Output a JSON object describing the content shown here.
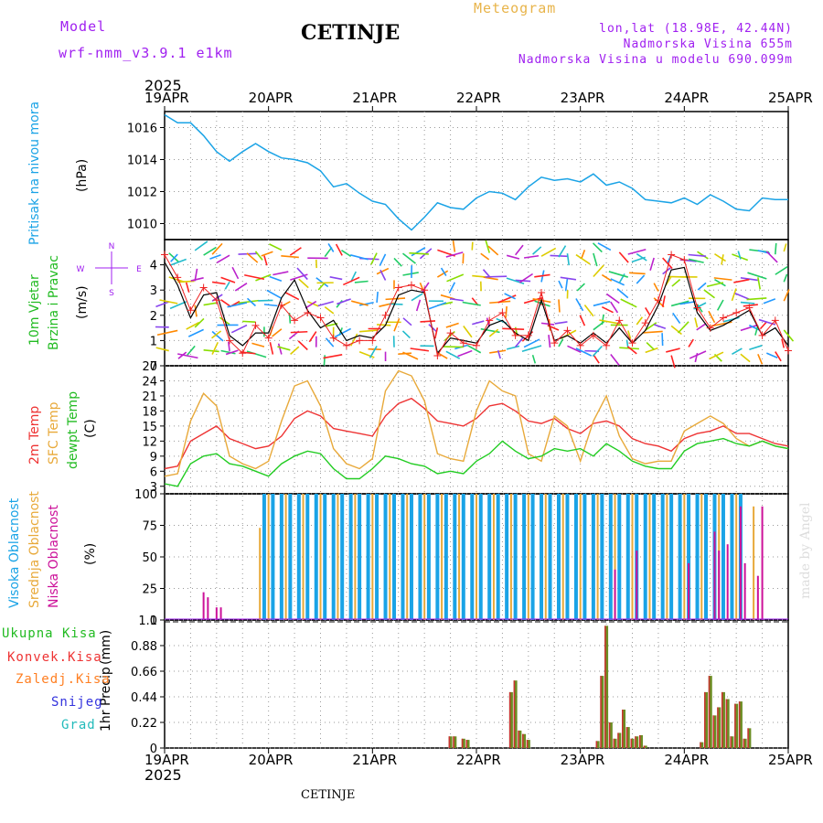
{
  "header": {
    "model_label": "Model",
    "model_name": "wrf-nmm_v3.9.1 e1km",
    "station": "CETINJE",
    "product": "Meteogram",
    "coords": "lon,lat (18.98E, 42.44N)",
    "elevation": "Nadmorska Visina 655m",
    "model_elevation": "Nadmorska Visina u modelu 690.099m",
    "year": "2025",
    "footer_station": "CETINJE",
    "watermark": "made by Angel"
  },
  "axis": {
    "day_labels": [
      "19APR",
      "20APR",
      "21APR",
      "22APR",
      "23APR",
      "24APR",
      "25APR"
    ]
  },
  "colors": {
    "pressure": "#1aa3e6",
    "wind_speed": "#000000",
    "wind_gust": "#ee2222",
    "temp_2m": "#ee3333",
    "temp_sfc": "#e8a93a",
    "dewpoint": "#22cc22",
    "cloud_high": "#1aa3e6",
    "cloud_mid": "#e8a93a",
    "cloud_low": "#cc1199",
    "precip": "#6b8e23"
  },
  "panels": {
    "pressure": {
      "labels": [
        "Pritisak na nivou mora",
        "(hPa)"
      ]
    },
    "wind": {
      "labels": [
        "10m Vjetar",
        "Brzina i Pravac",
        "(m/s)"
      ],
      "compass": [
        "N",
        "S",
        "W",
        "E"
      ]
    },
    "temp": {
      "labels": [
        "2m Temp",
        "SFC Temp",
        "dewpt Temp",
        "(C)"
      ]
    },
    "cloud": {
      "labels": [
        "Visoka Oblacnost",
        "Srednja Oblacnost",
        "Niska Oblacnost",
        "(%)"
      ]
    },
    "precip": {
      "labels": [
        "1hr Precip",
        "(mm)"
      ],
      "legend": [
        "Ukupna Kisa",
        "Konvek.Kisa",
        "Zaledj.Kisa",
        "Snijeg",
        "Grad"
      ],
      "legend_colors": [
        "#22bb22",
        "#ee3333",
        "#ff7f22",
        "#3333dd",
        "#22bbbb"
      ]
    }
  },
  "chart_data": [
    {
      "type": "line",
      "name": "pressure",
      "unit": "hPa",
      "x_range": [
        0,
        144
      ],
      "ylim": [
        1009,
        1017
      ],
      "y_ticks": [
        1010,
        1012,
        1014,
        1016
      ],
      "x": [
        0,
        3,
        6,
        9,
        12,
        15,
        18,
        21,
        24,
        27,
        30,
        33,
        36,
        39,
        42,
        45,
        48,
        51,
        54,
        57,
        60,
        63,
        66,
        69,
        72,
        75,
        78,
        81,
        84,
        87,
        90,
        93,
        96,
        99,
        102,
        105,
        108,
        111,
        114,
        117,
        120,
        123,
        126,
        129,
        132,
        135,
        138,
        141,
        144
      ],
      "y": [
        1016.8,
        1016.3,
        1016.3,
        1015.5,
        1014.5,
        1013.9,
        1014.5,
        1015.0,
        1014.5,
        1014.1,
        1014.0,
        1013.8,
        1013.3,
        1012.3,
        1012.5,
        1011.9,
        1011.4,
        1011.2,
        1010.3,
        1009.6,
        1010.4,
        1011.3,
        1011.0,
        1010.9,
        1011.6,
        1012.0,
        1011.9,
        1011.5,
        1012.3,
        1012.9,
        1012.7,
        1012.8,
        1012.6,
        1013.1,
        1012.4,
        1012.6,
        1012.2,
        1011.5,
        1011.4,
        1011.3,
        1011.6,
        1011.2,
        1011.8,
        1011.4,
        1010.9,
        1010.8,
        1011.6,
        1011.5,
        1011.5
      ]
    },
    {
      "type": "line",
      "name": "wind",
      "unit": "m/s",
      "x_range": [
        0,
        144
      ],
      "ylim": [
        0,
        5
      ],
      "y_ticks": [
        0,
        1,
        2,
        3,
        4
      ],
      "series": [
        {
          "name": "speed",
          "x": [
            0,
            3,
            6,
            9,
            12,
            15,
            18,
            21,
            24,
            27,
            30,
            33,
            36,
            39,
            42,
            45,
            48,
            51,
            54,
            57,
            60,
            63,
            66,
            69,
            72,
            75,
            78,
            81,
            84,
            87,
            90,
            93,
            96,
            99,
            102,
            105,
            108,
            111,
            114,
            117,
            120,
            123,
            126,
            129,
            132,
            135,
            138,
            141,
            144
          ],
          "y": [
            4.1,
            3.2,
            1.9,
            2.8,
            2.9,
            1.2,
            0.8,
            1.3,
            1.3,
            2.7,
            3.4,
            2.2,
            1.5,
            1.8,
            1.0,
            1.2,
            1.1,
            1.6,
            2.8,
            3.0,
            2.9,
            0.5,
            1.1,
            1.0,
            0.9,
            1.6,
            1.8,
            1.3,
            1.0,
            2.6,
            1.0,
            1.2,
            0.9,
            1.3,
            0.9,
            1.5,
            0.9,
            1.4,
            2.4,
            3.8,
            3.9,
            2.1,
            1.4,
            1.6,
            1.9,
            2.2,
            1.2,
            1.5,
            0.8
          ]
        },
        {
          "name": "gust",
          "x": [
            0,
            3,
            6,
            9,
            12,
            15,
            18,
            21,
            24,
            27,
            30,
            33,
            36,
            39,
            42,
            45,
            48,
            51,
            54,
            57,
            60,
            63,
            66,
            69,
            72,
            75,
            78,
            81,
            84,
            87,
            90,
            93,
            96,
            99,
            102,
            105,
            108,
            111,
            114,
            117,
            120,
            123,
            126,
            129,
            132,
            135,
            138,
            141,
            144
          ],
          "y": [
            4.4,
            3.5,
            2.2,
            3.1,
            2.6,
            1.0,
            0.5,
            1.6,
            1.1,
            2.4,
            1.8,
            2.1,
            1.9,
            1.1,
            0.8,
            1.0,
            1.0,
            2.0,
            3.1,
            3.2,
            3.0,
            0.4,
            1.3,
            0.9,
            0.8,
            1.8,
            2.1,
            1.2,
            1.2,
            2.9,
            0.9,
            1.4,
            0.8,
            1.2,
            0.8,
            1.8,
            0.9,
            1.7,
            2.6,
            4.4,
            4.2,
            2.3,
            1.5,
            1.9,
            2.1,
            2.3,
            1.2,
            1.8,
            0.6
          ]
        }
      ]
    },
    {
      "type": "line",
      "name": "temperature",
      "unit": "C",
      "x_range": [
        0,
        144
      ],
      "ylim": [
        1.5,
        27
      ],
      "y_ticks": [
        3,
        6,
        9,
        12,
        15,
        18,
        21,
        24,
        27
      ],
      "series": [
        {
          "name": "2m",
          "x": [
            0,
            3,
            6,
            9,
            12,
            15,
            18,
            21,
            24,
            27,
            30,
            33,
            36,
            39,
            42,
            45,
            48,
            51,
            54,
            57,
            60,
            63,
            66,
            69,
            72,
            75,
            78,
            81,
            84,
            87,
            90,
            93,
            96,
            99,
            102,
            105,
            108,
            111,
            114,
            117,
            120,
            123,
            126,
            129,
            132,
            135,
            138,
            141,
            144
          ],
          "y": [
            6.5,
            7.0,
            12.0,
            13.5,
            15.0,
            12.5,
            11.5,
            10.5,
            11.0,
            13.0,
            16.5,
            18.0,
            17.0,
            14.5,
            14.0,
            13.5,
            13.0,
            17.0,
            19.5,
            20.5,
            18.5,
            16.0,
            15.5,
            15.0,
            16.5,
            19.0,
            19.5,
            18.0,
            16.0,
            15.5,
            16.5,
            14.5,
            13.5,
            15.5,
            16.0,
            15.0,
            12.5,
            11.5,
            11.0,
            10.0,
            12.5,
            13.5,
            14.0,
            15.0,
            13.5,
            13.5,
            12.5,
            11.5,
            11.0
          ]
        },
        {
          "name": "SFC",
          "x": [
            0,
            3,
            6,
            9,
            12,
            15,
            18,
            21,
            24,
            27,
            30,
            33,
            36,
            39,
            42,
            45,
            48,
            51,
            54,
            57,
            60,
            63,
            66,
            69,
            72,
            75,
            78,
            81,
            84,
            87,
            90,
            93,
            96,
            99,
            102,
            105,
            108,
            111,
            114,
            117,
            120,
            123,
            126,
            129,
            132,
            135,
            138,
            141,
            144
          ],
          "y": [
            5.0,
            5.5,
            16.0,
            21.5,
            19.0,
            9.0,
            7.5,
            6.5,
            8.0,
            16.0,
            23.0,
            24.0,
            19.0,
            10.5,
            7.5,
            6.5,
            8.5,
            22.0,
            26.0,
            25.0,
            20.0,
            9.5,
            8.5,
            8.0,
            18.0,
            24.0,
            22.0,
            21.0,
            9.5,
            8.0,
            17.0,
            15.0,
            8.0,
            16.0,
            21.0,
            13.0,
            8.5,
            7.5,
            8.0,
            8.0,
            14.0,
            15.5,
            17.0,
            15.5,
            12.5,
            11.0,
            12.0,
            11.0,
            10.5
          ]
        },
        {
          "name": "dewpt",
          "x": [
            0,
            3,
            6,
            9,
            12,
            15,
            18,
            21,
            24,
            27,
            30,
            33,
            36,
            39,
            42,
            45,
            48,
            51,
            54,
            57,
            60,
            63,
            66,
            69,
            72,
            75,
            78,
            81,
            84,
            87,
            90,
            93,
            96,
            99,
            102,
            105,
            108,
            111,
            114,
            117,
            120,
            123,
            126,
            129,
            132,
            135,
            138,
            141,
            144
          ],
          "y": [
            3.5,
            3.0,
            7.5,
            9.0,
            9.5,
            7.5,
            7.0,
            6.0,
            5.0,
            7.5,
            9.0,
            10.0,
            9.5,
            6.5,
            4.5,
            4.5,
            6.5,
            9.0,
            8.5,
            7.5,
            7.0,
            5.5,
            6.0,
            5.5,
            8.0,
            9.5,
            12.0,
            10.0,
            8.5,
            9.0,
            10.5,
            10.0,
            10.5,
            9.0,
            11.5,
            10.0,
            8.0,
            7.0,
            6.5,
            6.5,
            10.0,
            11.5,
            12.0,
            12.5,
            11.5,
            11.0,
            12.0,
            11.0,
            10.5
          ]
        }
      ]
    },
    {
      "type": "bar",
      "name": "cloud_cover",
      "unit": "%",
      "x_range": [
        0,
        144
      ],
      "ylim": [
        0,
        100
      ],
      "y_ticks": [
        0,
        25,
        50,
        75,
        100
      ],
      "series": [
        {
          "name": "high",
          "x": [
            23,
            25,
            27,
            29,
            31,
            33,
            35,
            37,
            39,
            41,
            43,
            45,
            47,
            49,
            51,
            53,
            55,
            57,
            59,
            61,
            63,
            65,
            67,
            69,
            71,
            73,
            75,
            77,
            79,
            81,
            83,
            85,
            87,
            89,
            91,
            93,
            95,
            97,
            99,
            101,
            103,
            105,
            107,
            109,
            111,
            113,
            115,
            117,
            119,
            121,
            123,
            125,
            127,
            129,
            131,
            133
          ],
          "y": [
            100,
            100,
            100,
            100,
            100,
            100,
            100,
            100,
            100,
            100,
            100,
            100,
            100,
            100,
            100,
            100,
            100,
            100,
            100,
            100,
            100,
            100,
            100,
            100,
            100,
            100,
            100,
            100,
            100,
            100,
            100,
            100,
            100,
            100,
            100,
            100,
            100,
            100,
            100,
            100,
            100,
            100,
            100,
            100,
            100,
            100,
            100,
            100,
            100,
            100,
            100,
            100,
            100,
            100,
            100,
            100
          ]
        },
        {
          "name": "mid",
          "x": [
            22,
            24,
            28,
            32,
            36,
            40,
            44,
            48,
            52,
            56,
            60,
            64,
            68,
            72,
            76,
            80,
            84,
            88,
            92,
            96,
            100,
            104,
            108,
            112,
            116,
            120,
            124,
            128,
            132,
            136
          ],
          "y": [
            73,
            100,
            100,
            100,
            100,
            100,
            100,
            100,
            100,
            100,
            100,
            100,
            100,
            100,
            100,
            100,
            100,
            100,
            100,
            100,
            100,
            100,
            100,
            100,
            100,
            100,
            100,
            100,
            100,
            90
          ]
        },
        {
          "name": "low",
          "x": [
            9,
            10,
            12,
            13,
            17,
            18,
            104,
            109,
            121,
            127,
            128,
            130,
            133,
            134,
            137,
            138
          ],
          "y": [
            22,
            18,
            10,
            10,
            1,
            1,
            40,
            55,
            45,
            70,
            55,
            60,
            90,
            45,
            35,
            90
          ]
        }
      ]
    },
    {
      "type": "bar",
      "name": "precip_1hr",
      "unit": "mm",
      "x_range": [
        0,
        144
      ],
      "ylim": [
        0,
        1.1
      ],
      "y_ticks": [
        0,
        0.22,
        0.44,
        0.66,
        0.88,
        1.1
      ],
      "x": [
        66,
        67,
        69,
        70,
        80,
        81,
        82,
        83,
        84,
        100,
        101,
        102,
        103,
        104,
        105,
        106,
        107,
        108,
        109,
        110,
        111,
        124,
        125,
        126,
        127,
        128,
        129,
        130,
        131,
        132,
        133,
        134,
        135
      ],
      "y": [
        0.1,
        0.1,
        0.08,
        0.07,
        0.48,
        0.58,
        0.15,
        0.12,
        0.07,
        0.06,
        0.62,
        1.05,
        0.22,
        0.08,
        0.13,
        0.33,
        0.18,
        0.08,
        0.1,
        0.11,
        0.02,
        0.05,
        0.48,
        0.62,
        0.28,
        0.35,
        0.48,
        0.42,
        0.1,
        0.38,
        0.4,
        0.08,
        0.17
      ]
    }
  ]
}
